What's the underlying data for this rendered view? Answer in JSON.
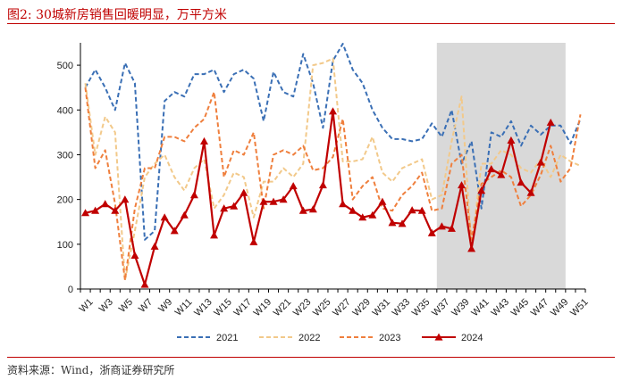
{
  "header": {
    "title": "图2:  30城新房销售回暖明显，万平方米"
  },
  "footer": {
    "source": "资料来源：Wind，浙商证券研究所"
  },
  "colors": {
    "2021": "#3a6fb5",
    "2022": "#f2c98a",
    "2023": "#ef7f3d",
    "2024": "#c00000",
    "highlight": "#d9d9d9",
    "title": "#c00000"
  },
  "chart_data": {
    "type": "line",
    "x": [
      "W1",
      "W2",
      "W3",
      "W4",
      "W5",
      "W6",
      "W7",
      "W8",
      "W9",
      "W10",
      "W11",
      "W12",
      "W13",
      "W14",
      "W15",
      "W16",
      "W17",
      "W18",
      "W19",
      "W20",
      "W21",
      "W22",
      "W23",
      "W24",
      "W25",
      "W26",
      "W27",
      "W28",
      "W29",
      "W30",
      "W31",
      "W32",
      "W33",
      "W34",
      "W35",
      "W36",
      "W37",
      "W38",
      "W39",
      "W40",
      "W41",
      "W42",
      "W43",
      "W44",
      "W45",
      "W46",
      "W47",
      "W48",
      "W49",
      "W50",
      "W51"
    ],
    "x_tick_labels": [
      "W1",
      "W3",
      "W5",
      "W7",
      "W9",
      "W11",
      "W13",
      "W15",
      "W17",
      "W19",
      "W21",
      "W23",
      "W25",
      "W27",
      "W29",
      "W31",
      "W33",
      "W35",
      "W37",
      "W39",
      "W41",
      "W43",
      "W45",
      "W47",
      "W49",
      "W51"
    ],
    "ylim": [
      0,
      550
    ],
    "yticks": [
      0,
      100,
      200,
      300,
      400,
      500
    ],
    "shaded_region": [
      "W37",
      "W49"
    ],
    "legend_position": "bottom",
    "grid": false,
    "series": [
      {
        "name": "2021",
        "style": "dashed",
        "values": [
          450,
          490,
          450,
          400,
          505,
          460,
          110,
          130,
          420,
          440,
          430,
          480,
          480,
          490,
          440,
          480,
          490,
          470,
          375,
          485,
          440,
          430,
          525,
          460,
          360,
          510,
          548,
          490,
          460,
          400,
          360,
          335,
          335,
          330,
          335,
          370,
          340,
          400,
          280,
          330,
          180,
          350,
          340,
          375,
          320,
          365,
          345,
          365,
          365,
          325,
          380
        ]
      },
      {
        "name": "2022",
        "style": "dashed",
        "values": [
          460,
          300,
          385,
          350,
          20,
          130,
          250,
          280,
          300,
          250,
          220,
          270,
          290,
          180,
          210,
          260,
          250,
          160,
          240,
          240,
          270,
          250,
          280,
          500,
          505,
          515,
          285,
          285,
          290,
          340,
          260,
          240,
          270,
          280,
          290,
          200,
          210,
          330,
          430,
          90,
          280,
          280,
          310,
          300,
          270,
          260,
          290,
          250,
          300,
          285,
          275
        ]
      },
      {
        "name": "2023",
        "style": "dashed",
        "values": [
          450,
          270,
          310,
          190,
          20,
          180,
          270,
          270,
          340,
          340,
          330,
          360,
          380,
          440,
          250,
          310,
          300,
          350,
          180,
          300,
          310,
          300,
          320,
          265,
          270,
          295,
          380,
          200,
          230,
          250,
          180,
          175,
          210,
          230,
          260,
          175,
          180,
          280,
          300,
          110,
          235,
          250,
          265,
          250,
          185,
          210,
          255,
          320,
          240,
          270,
          390
        ]
      },
      {
        "name": "2024",
        "style": "solid-triangle",
        "values": [
          170,
          175,
          190,
          175,
          200,
          75,
          10,
          95,
          160,
          130,
          165,
          210,
          330,
          120,
          180,
          185,
          215,
          105,
          195,
          195,
          200,
          230,
          175,
          178,
          232,
          397,
          190,
          175,
          160,
          165,
          195,
          148,
          146,
          176,
          175,
          125,
          140,
          135,
          232,
          90,
          220,
          268,
          255,
          332,
          238,
          215,
          283,
          372,
          null,
          null,
          null
        ]
      }
    ]
  }
}
